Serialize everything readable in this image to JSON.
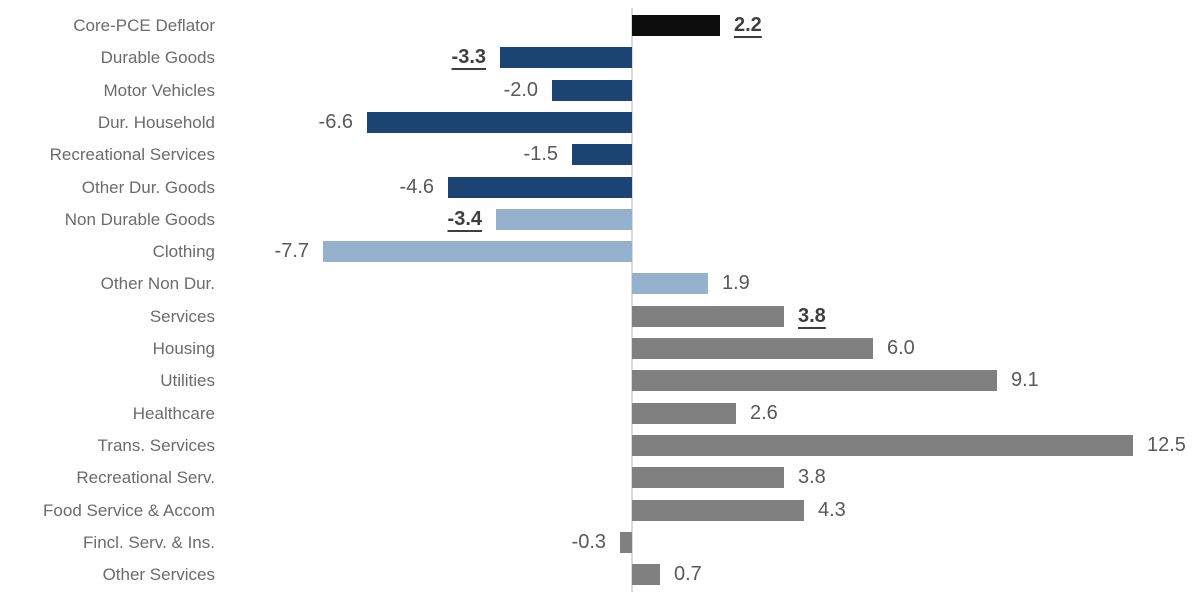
{
  "chart_data": {
    "type": "bar",
    "orientation": "horizontal",
    "title": "",
    "xlabel": "",
    "ylabel": "",
    "value_axis_range": [
      -8,
      13
    ],
    "grid": false,
    "legend": false,
    "group_colors": {
      "core": "#0d0d0d",
      "durable_goods": "#1b4475",
      "non_durable_goods": "#95b1cb",
      "services": "#808080"
    },
    "text_colors": {
      "category_label": "#6b6b6b",
      "value_label": "#595959",
      "value_label_emphasized": "#3f3f3f",
      "axis_line": "#d9d9d9"
    },
    "categories": [
      "Core-PCE Deflator",
      "Durable Goods",
      "Motor Vehicles",
      "Dur. Household",
      "Recreational Services",
      "Other Dur. Goods",
      "Non Durable Goods",
      "Clothing",
      "Other Non Dur.",
      "Services",
      "Housing",
      "Utilities",
      "Healthcare",
      "Trans. Services",
      "Recreational Serv.",
      "Food Service & Accom",
      "Fincl. Serv. & Ins.",
      "Other Services"
    ],
    "values": [
      2.2,
      -3.3,
      -2.0,
      -6.6,
      -1.5,
      -4.6,
      -3.4,
      -7.7,
      1.9,
      3.8,
      6.0,
      9.1,
      2.6,
      12.5,
      3.8,
      4.3,
      -0.3,
      0.7
    ],
    "rows": [
      {
        "label": "Core-PCE Deflator",
        "value": 2.2,
        "display": "2.2",
        "group": "core",
        "emphasized": true
      },
      {
        "label": "Durable Goods",
        "value": -3.3,
        "display": "-3.3",
        "group": "durable_goods",
        "emphasized": true
      },
      {
        "label": "Motor Vehicles",
        "value": -2.0,
        "display": "-2.0",
        "group": "durable_goods",
        "emphasized": false
      },
      {
        "label": "Dur. Household",
        "value": -6.6,
        "display": "-6.6",
        "group": "durable_goods",
        "emphasized": false
      },
      {
        "label": "Recreational Services",
        "value": -1.5,
        "display": "-1.5",
        "group": "durable_goods",
        "emphasized": false
      },
      {
        "label": "Other Dur. Goods",
        "value": -4.6,
        "display": "-4.6",
        "group": "durable_goods",
        "emphasized": false
      },
      {
        "label": "Non Durable Goods",
        "value": -3.4,
        "display": "-3.4",
        "group": "non_durable_goods",
        "emphasized": true
      },
      {
        "label": "Clothing",
        "value": -7.7,
        "display": "-7.7",
        "group": "non_durable_goods",
        "emphasized": false
      },
      {
        "label": "Other Non Dur.",
        "value": 1.9,
        "display": "1.9",
        "group": "non_durable_goods",
        "emphasized": false
      },
      {
        "label": "Services",
        "value": 3.8,
        "display": "3.8",
        "group": "services",
        "emphasized": true
      },
      {
        "label": "Housing",
        "value": 6.0,
        "display": "6.0",
        "group": "services",
        "emphasized": false
      },
      {
        "label": "Utilities",
        "value": 9.1,
        "display": "9.1",
        "group": "services",
        "emphasized": false
      },
      {
        "label": "Healthcare",
        "value": 2.6,
        "display": "2.6",
        "group": "services",
        "emphasized": false
      },
      {
        "label": "Trans. Services",
        "value": 12.5,
        "display": "12.5",
        "group": "services",
        "emphasized": false
      },
      {
        "label": "Recreational Serv.",
        "value": 3.8,
        "display": "3.8",
        "group": "services",
        "emphasized": false
      },
      {
        "label": "Food Service & Accom",
        "value": 4.3,
        "display": "4.3",
        "group": "services",
        "emphasized": false
      },
      {
        "label": "Fincl. Serv. & Ins.",
        "value": -0.3,
        "display": "-0.3",
        "group": "services",
        "emphasized": false
      },
      {
        "label": "Other Services",
        "value": 0.7,
        "display": "0.7",
        "group": "services",
        "emphasized": false
      }
    ]
  }
}
